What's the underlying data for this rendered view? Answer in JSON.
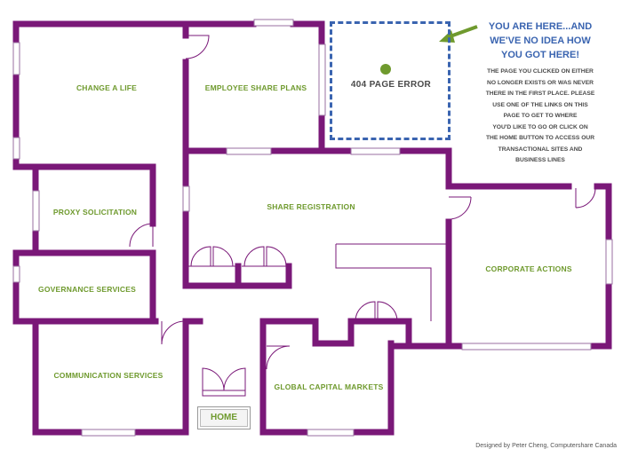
{
  "floorplan": {
    "wall_color": "#7a1878",
    "label_color": "#6f9a2e",
    "rooms": [
      {
        "id": "change-a-life",
        "label": "CHANGE A LIFE"
      },
      {
        "id": "employee-share-plans",
        "label": "EMPLOYEE SHARE PLANS"
      },
      {
        "id": "proxy-solicitation",
        "label": "PROXY SOLICITATION"
      },
      {
        "id": "share-registration",
        "label": "SHARE REGISTRATION"
      },
      {
        "id": "governance-services",
        "label": "GOVERNANCE SERVICES"
      },
      {
        "id": "corporate-actions",
        "label": "CORPORATE ACTIONS"
      },
      {
        "id": "communication-services",
        "label": "COMMUNICATION SERVICES"
      },
      {
        "id": "global-capital-markets",
        "label": "GLOBAL CAPITAL MARKETS"
      }
    ]
  },
  "error": {
    "title": "404 PAGE ERROR",
    "marker_color": "#6f9a2e",
    "box_color": "#3a64b0"
  },
  "callout": {
    "heading_lines": [
      "YOU ARE HERE...AND",
      "WE'VE NO IDEA HOW",
      "YOU GOT HERE!"
    ],
    "description_lines": [
      "THE PAGE YOU CLICKED ON EITHER",
      "NO LONGER EXISTS OR WAS NEVER",
      "THERE IN THE FIRST PLACE. PLEASE",
      "USE ONE OF THE LINKS ON THIS",
      "PAGE TO GET TO WHERE",
      "YOU'D LIKE TO GO OR CLICK ON",
      "THE HOME BUTTON TO ACCESS OUR",
      "TRANSACTIONAL SITES AND",
      "BUSINESS LINES"
    ],
    "arrow_color": "#6f9a2e"
  },
  "home_button": {
    "label": "HOME"
  },
  "credit": "Designed by Peter Cheng, Computershare Canada"
}
